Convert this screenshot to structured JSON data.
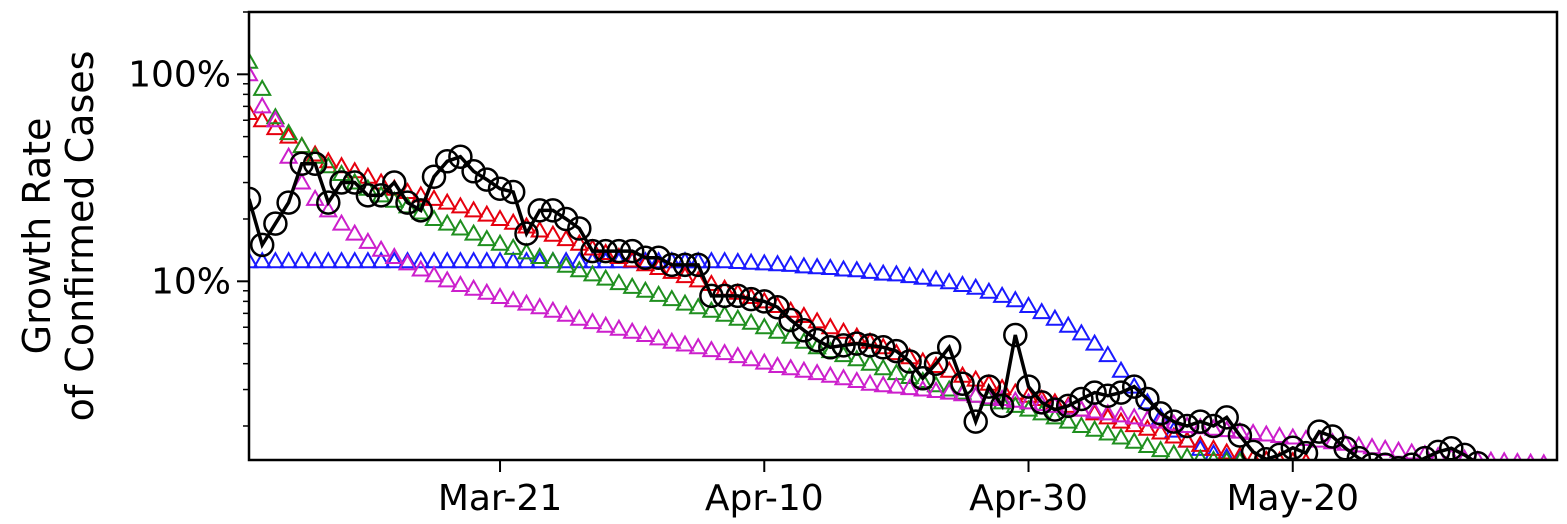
{
  "chart_data": {
    "type": "scatter",
    "title": "",
    "ylabel_lines": [
      "Growth Rate",
      "of Confirmed Cases"
    ],
    "yscale": "log",
    "x_date_range": [
      "2020-03-02",
      "2020-06-09"
    ],
    "ylim": [
      1.37,
      200
    ],
    "x_ticks": [
      {
        "date": "2020-03-21",
        "label": "Mar-21"
      },
      {
        "date": "2020-04-10",
        "label": "Apr-10"
      },
      {
        "date": "2020-04-30",
        "label": "Apr-30"
      },
      {
        "date": "2020-05-20",
        "label": "May-20"
      }
    ],
    "y_ticks": [
      {
        "value": 100,
        "label": "100%"
      },
      {
        "value": 10,
        "label": "10%"
      }
    ],
    "grid": false,
    "legend": "none",
    "series": [
      {
        "color": "#1a1aff",
        "marker": "triangle",
        "start_date": "2020-03-02",
        "interval_days": 1,
        "values": [
          12.5,
          12.5,
          12.5,
          12.5,
          12.5,
          12.5,
          12.5,
          12.5,
          12.5,
          12.5,
          12.5,
          12.5,
          12.5,
          12.5,
          12.5,
          12.5,
          12.5,
          12.5,
          12.5,
          12.5,
          12.5,
          12.5,
          12.5,
          12.5,
          12.5,
          12.5,
          12.5,
          12.5,
          12.5,
          12.5,
          12.5,
          12.5,
          12.5,
          12.5,
          12.5,
          12.5,
          12.5,
          12.4,
          12.3,
          12.2,
          12.1,
          12.0,
          11.8,
          11.7,
          11.6,
          11.4,
          11.3,
          11.1,
          10.9,
          10.8,
          10.6,
          10.4,
          10.2,
          9.9,
          9.6,
          9.3,
          8.9,
          8.5,
          8.1,
          7.6,
          7.1,
          6.6,
          6.1,
          5.6,
          5.0,
          4.4,
          3.7,
          3.1,
          2.6,
          2.2,
          1.9,
          1.7,
          1.55,
          1.47,
          1.41,
          1.38
        ]
      },
      {
        "color": "#e6000e",
        "marker": "triangle",
        "start_date": "2020-03-02",
        "interval_days": 1,
        "values": [
          65,
          60,
          55,
          50,
          45,
          41,
          38,
          36,
          34,
          32,
          30,
          28,
          27,
          26,
          25,
          24,
          23,
          22,
          21,
          20,
          19.2,
          18.4,
          17.6,
          16.8,
          16.0,
          15.2,
          14.4,
          13.7,
          13.1,
          12.6,
          12.1,
          11.6,
          11.1,
          10.6,
          10.1,
          9.7,
          9.2,
          8.8,
          8.4,
          8.0,
          7.6,
          7.2,
          6.8,
          6.4,
          6.0,
          5.7,
          5.4,
          5.1,
          4.8,
          4.5,
          4.3,
          4.1,
          3.9,
          3.7,
          3.5,
          3.35,
          3.2,
          3.05,
          2.9,
          2.8,
          2.7,
          2.6,
          2.5,
          2.4,
          2.3,
          2.2,
          2.1,
          2.02,
          1.94,
          1.86,
          1.78,
          1.7,
          1.62,
          1.55,
          1.49,
          1.43,
          1.39,
          1.37,
          1.36,
          1.35,
          1.34
        ]
      },
      {
        "color": "#1f8f1f",
        "marker": "triangle",
        "start_date": "2020-03-02",
        "interval_days": 1,
        "values": [
          115,
          85,
          62,
          52,
          45,
          40,
          36,
          33,
          30,
          28,
          26,
          24.5,
          23,
          21.5,
          20,
          19,
          18,
          17,
          16,
          15.2,
          14.5,
          13.8,
          13.1,
          12.5,
          11.9,
          11.3,
          10.8,
          10.3,
          9.8,
          9.4,
          9.0,
          8.6,
          8.2,
          7.8,
          7.5,
          7.2,
          6.9,
          6.6,
          6.3,
          6.0,
          5.7,
          5.4,
          5.1,
          4.8,
          4.6,
          4.4,
          4.2,
          4.0,
          3.8,
          3.6,
          3.45,
          3.3,
          3.15,
          3.0,
          2.9,
          2.8,
          2.7,
          2.6,
          2.5,
          2.4,
          2.3,
          2.2,
          2.1,
          2.0,
          1.92,
          1.84,
          1.76,
          1.68,
          1.6,
          1.53,
          1.47,
          1.42,
          1.39,
          1.37,
          1.36,
          1.35
        ]
      },
      {
        "color": "#cc1fcc",
        "marker": "triangle",
        "start_date": "2020-03-02",
        "interval_days": 1,
        "values": [
          100,
          70,
          60,
          40,
          30,
          25,
          22,
          19,
          17,
          15.5,
          14.2,
          13.1,
          12.2,
          11.4,
          10.7,
          10.1,
          9.6,
          9.2,
          8.8,
          8.4,
          8.1,
          7.8,
          7.5,
          7.2,
          6.9,
          6.6,
          6.35,
          6.1,
          5.9,
          5.7,
          5.5,
          5.3,
          5.1,
          4.95,
          4.8,
          4.65,
          4.5,
          4.35,
          4.2,
          4.05,
          3.9,
          3.8,
          3.7,
          3.6,
          3.5,
          3.4,
          3.3,
          3.2,
          3.15,
          3.1,
          3.05,
          3.0,
          2.95,
          2.9,
          2.85,
          2.8,
          2.75,
          2.7,
          2.65,
          2.6,
          2.55,
          2.5,
          2.45,
          2.4,
          2.35,
          2.3,
          2.25,
          2.2,
          2.15,
          2.1,
          2.05,
          2.0,
          1.97,
          1.94,
          1.91,
          1.88,
          1.85,
          1.82,
          1.79,
          1.76,
          1.73,
          1.7,
          1.67,
          1.64,
          1.61,
          1.58,
          1.55,
          1.52,
          1.49,
          1.46,
          1.43,
          1.41,
          1.39,
          1.37,
          1.36,
          1.35,
          1.34,
          1.33,
          1.32
        ]
      },
      {
        "color": "#000000",
        "marker": "circle",
        "connected": true,
        "start_date": "2020-03-02",
        "interval_days": 1,
        "values": [
          25,
          15,
          19,
          24,
          37,
          37,
          24,
          30,
          30,
          26,
          26,
          30,
          24,
          22,
          32,
          38,
          40,
          34,
          31,
          28,
          27,
          17,
          22,
          22,
          20,
          18,
          14,
          14,
          14,
          14,
          13,
          13,
          12,
          12,
          12,
          8.5,
          8.5,
          8.5,
          8.2,
          8.0,
          7.5,
          6.5,
          5.8,
          5.2,
          4.8,
          4.9,
          5.0,
          4.9,
          4.8,
          4.6,
          4.1,
          3.4,
          4.0,
          4.8,
          3.2,
          2.1,
          3.1,
          2.5,
          5.5,
          3.1,
          2.6,
          2.4,
          2.5,
          2.7,
          2.9,
          2.8,
          2.9,
          3.1,
          2.7,
          2.3,
          2.1,
          2.0,
          2.1,
          2.0,
          2.2,
          1.8,
          1.5,
          1.38,
          1.45,
          1.57,
          1.48,
          1.88,
          1.78,
          1.56,
          1.4,
          1.3,
          1.3,
          1.25,
          1.3,
          1.4,
          1.5,
          1.56,
          1.45,
          1.32
        ]
      }
    ]
  }
}
